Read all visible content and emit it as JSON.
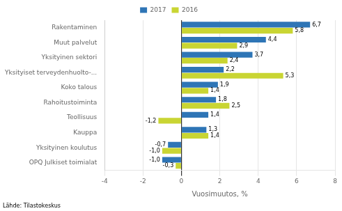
{
  "chart_data": {
    "type": "bar",
    "orientation": "horizontal",
    "categories": [
      "OPQ Julkiset toimialat",
      "Yksityinen koulutus",
      "Kauppa",
      "Teollisuus",
      "Rahoitustoiminta",
      "Koko talous",
      "Yksityiset terveydenhuolto-...",
      "Yksityinen sektori",
      "Muut palvelut",
      "Rakentaminen"
    ],
    "series": [
      {
        "name": "2017",
        "color": "#2E75B6",
        "values": [
          -1.0,
          -0.7,
          1.3,
          1.4,
          1.8,
          1.9,
          2.2,
          3.7,
          4.4,
          6.7
        ],
        "value_labels": [
          "-1,0",
          "-0,7",
          "1,3",
          "1,4",
          "1,8",
          "1,9",
          "2,2",
          "3,7",
          "4,4",
          "6,7"
        ]
      },
      {
        "name": "2016",
        "color": "#C9D533",
        "values": [
          -0.3,
          -1.0,
          1.4,
          -1.2,
          2.5,
          1.4,
          5.3,
          2.4,
          2.9,
          5.8
        ],
        "value_labels": [
          "-0,3",
          "-1,0",
          "1,4",
          "-1,2",
          "2,5",
          "1,4",
          "5,3",
          "2,4",
          "2,9",
          "5,8"
        ]
      }
    ],
    "xlabel": "Vuosimuutos, %",
    "xlim": [
      -4,
      8
    ],
    "xticks": [
      -4,
      -2,
      0,
      2,
      4,
      6,
      8
    ],
    "annotations": [
      "Lähde: Tilastokeskus"
    ],
    "data_labels": true,
    "grid": true,
    "legend": "top"
  }
}
